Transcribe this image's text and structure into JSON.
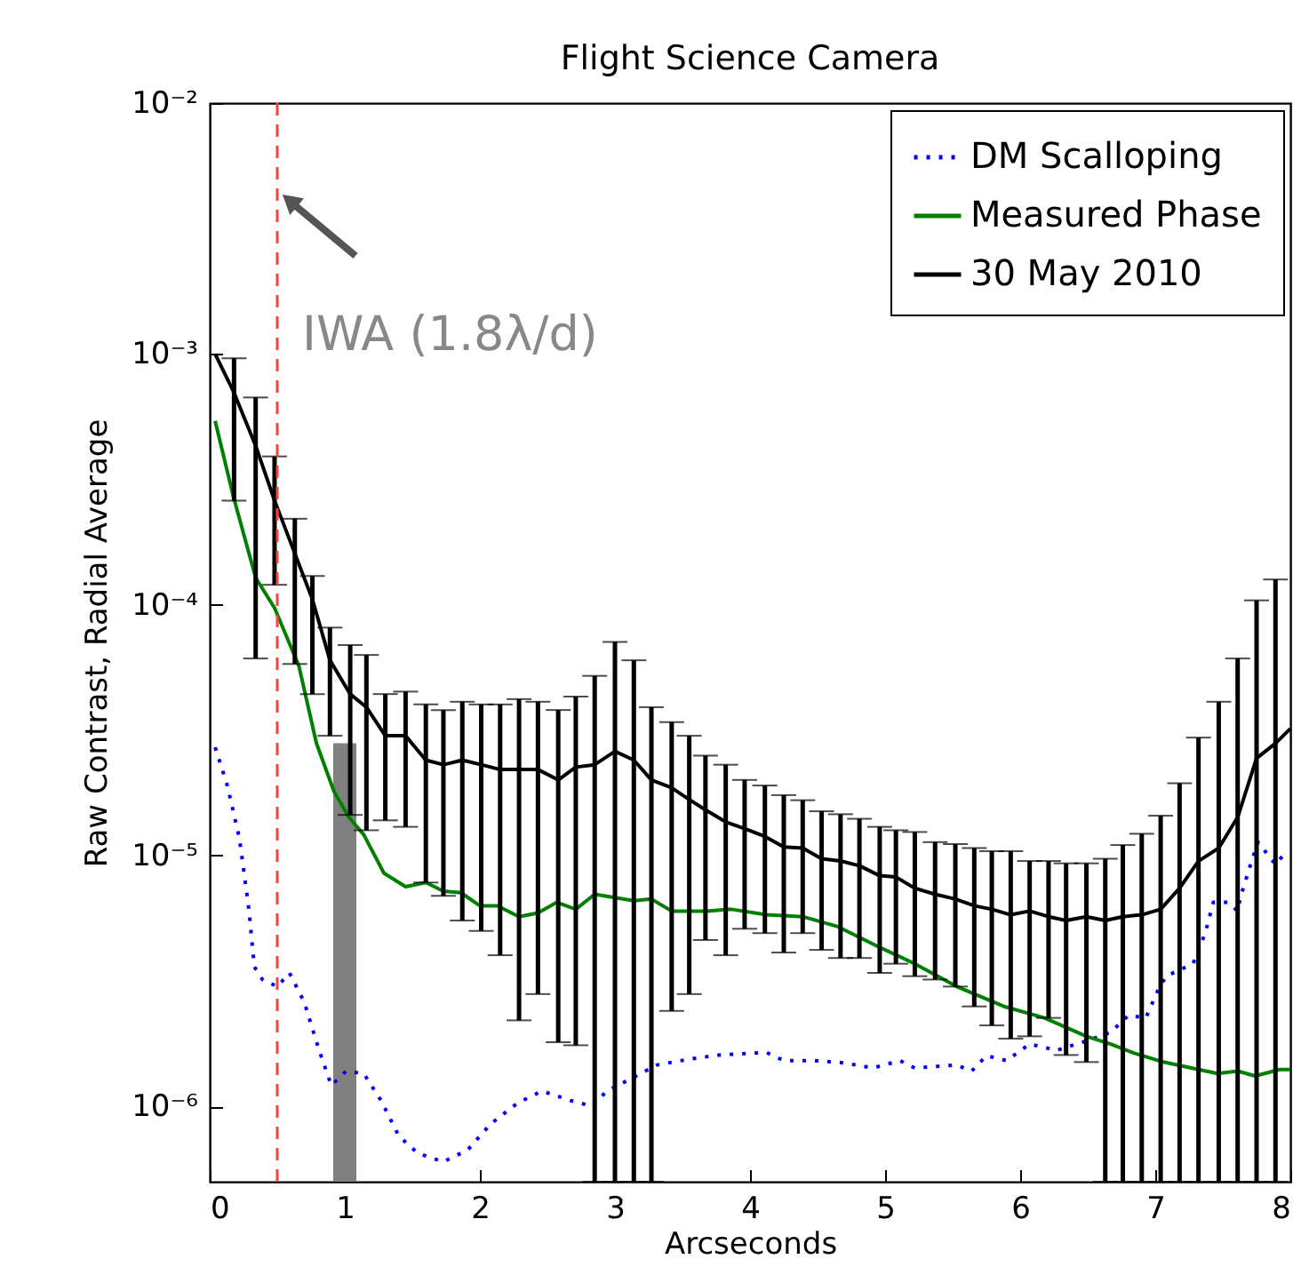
{
  "chart_data": {
    "type": "line",
    "title": "Flight Science Camera",
    "xlabel": "Arcseconds",
    "ylabel": "Raw Contrast, Radial Average",
    "xlim": [
      0,
      8
    ],
    "xticks": [
      0,
      1,
      2,
      3,
      4,
      5,
      6,
      7,
      8
    ],
    "ylim": [
      5e-07,
      0.01
    ],
    "yticks": [
      {
        "value": 1e-06,
        "label": "10⁻⁶"
      },
      {
        "value": 1e-05,
        "label": "10⁻⁵"
      },
      {
        "value": 0.0001,
        "label": "10⁻⁴"
      },
      {
        "value": 0.001,
        "label": "10⁻³"
      },
      {
        "value": 0.01,
        "label": "10⁻²"
      }
    ],
    "log": true,
    "legend": "top right",
    "ref_lines": [
      {
        "axis": "x",
        "value": 0.5,
        "color": "#ff4040",
        "line_style": "dashed"
      }
    ],
    "annotations": [
      {
        "text": "IWA (1.8λ/d)",
        "x": 0.5,
        "y": 0.0045
      }
    ],
    "series": [
      {
        "type": "bar",
        "color": "#808080",
        "x": [
          1
        ],
        "values": [
          2.8e-05
        ]
      },
      {
        "name": "DM Scalloping",
        "color": "#0000ff",
        "line_style": "dotted",
        "x": [
          0.04,
          0.13,
          0.22,
          0.29,
          0.33,
          0.39,
          0.5,
          0.59,
          0.7,
          0.81,
          0.9,
          1.01,
          1.14,
          1.27,
          1.4,
          1.54,
          1.73,
          1.91,
          2.08,
          2.28,
          2.46,
          2.68,
          2.83,
          2.94,
          3.11,
          3.31,
          3.55,
          3.77,
          4.12,
          4.25,
          4.47,
          4.69,
          4.91,
          5.11,
          5.22,
          5.53,
          5.64,
          5.75,
          5.9,
          6.07,
          6.27,
          6.49,
          6.67,
          6.8,
          6.93,
          7.02,
          7.08,
          7.28,
          7.37,
          7.43,
          7.54,
          7.61,
          7.63,
          7.7,
          7.76,
          7.89,
          7.98
        ],
        "values": [
          2.7e-05,
          1.9e-05,
          1.17e-05,
          6.1e-06,
          3.6e-06,
          3.2e-06,
          3e-06,
          3.4e-06,
          2.6e-06,
          1.67e-06,
          1.21e-06,
          1.38e-06,
          1.35e-06,
          1.05e-06,
          7.6e-07,
          6.5e-07,
          6e-07,
          6.7e-07,
          8.5e-07,
          1.03e-06,
          1.15e-06,
          1.05e-06,
          1e-06,
          1.15e-06,
          1.28e-06,
          1.46e-06,
          1.54e-06,
          1.6e-06,
          1.64e-06,
          1.52e-06,
          1.52e-06,
          1.49e-06,
          1.42e-06,
          1.52e-06,
          1.42e-06,
          1.46e-06,
          1.38e-06,
          1.59e-06,
          1.52e-06,
          1.77e-06,
          1.67e-06,
          1.82e-06,
          1.97e-06,
          2.3e-06,
          2.25e-06,
          2.9e-06,
          3.3e-06,
          3.7e-06,
          4.9e-06,
          6.5e-06,
          6.5e-06,
          6e-06,
          6.8e-06,
          9e-06,
          1.13e-05,
          9.2e-06,
          1.05e-05
        ]
      },
      {
        "name": "Measured Phase",
        "color": "#008000",
        "line_style": "solid",
        "x": [
          0.04,
          0.175,
          0.34,
          0.48,
          0.66,
          0.79,
          0.92,
          1.03,
          1.14,
          1.29,
          1.45,
          1.6,
          1.73,
          1.86,
          2.0,
          2.13,
          2.29,
          2.43,
          2.57,
          2.71,
          2.85,
          3.14,
          3.27,
          3.42,
          3.68,
          3.86,
          4.12,
          4.39,
          4.65,
          4.96,
          5.22,
          5.53,
          5.88,
          6.18,
          6.49,
          6.67,
          6.84,
          7.06,
          7.46,
          7.61,
          7.74,
          7.92,
          8.0
        ],
        "values": [
          0.00054,
          0.00027,
          0.000128,
          9.7e-05,
          5.7e-05,
          2.8e-05,
          1.8e-05,
          1.42e-05,
          1.21e-05,
          8.5e-06,
          7.5e-06,
          7.8e-06,
          7.2e-06,
          7.1e-06,
          6.3e-06,
          6.3e-06,
          5.7e-06,
          5.9e-06,
          6.5e-06,
          6.1e-06,
          7e-06,
          6.6e-06,
          6.7e-06,
          6e-06,
          6e-06,
          6.1e-06,
          5.8e-06,
          5.7e-06,
          5.2e-06,
          4.3e-06,
          3.7e-06,
          3e-06,
          2.5e-06,
          2.25e-06,
          1.9e-06,
          1.77e-06,
          1.63e-06,
          1.5e-06,
          1.35e-06,
          1.38e-06,
          1.32e-06,
          1.4e-06,
          1.4e-06
        ]
      },
      {
        "name": "30 May 2010",
        "color": "#000000",
        "line_style": "solid",
        "x": [
          0.04,
          0.18,
          0.34,
          0.48,
          0.63,
          0.76,
          0.89,
          1.04,
          1.16,
          1.3,
          1.45,
          1.6,
          1.73,
          1.87,
          2.01,
          2.15,
          2.29,
          2.43,
          2.58,
          2.71,
          2.85,
          3.0,
          3.14,
          3.27,
          3.42,
          3.55,
          3.67,
          3.82,
          3.96,
          4.11,
          4.25,
          4.39,
          4.53,
          4.67,
          4.81,
          4.96,
          5.08,
          5.22,
          5.37,
          5.52,
          5.66,
          5.79,
          5.93,
          6.07,
          6.21,
          6.34,
          6.49,
          6.63,
          6.76,
          6.9,
          7.04,
          7.18,
          7.32,
          7.47,
          7.61,
          7.75,
          7.89,
          8.0
        ],
        "values": [
          0.001,
          0.0007,
          0.00043,
          0.00026,
          0.00016,
          0.000105,
          6e-05,
          4.4e-05,
          3.9e-05,
          3e-05,
          3e-05,
          2.4e-05,
          2.3e-05,
          2.4e-05,
          2.3e-05,
          2.2e-05,
          2.2e-05,
          2.2e-05,
          2e-05,
          2.25e-05,
          2.3e-05,
          2.6e-05,
          2.4e-05,
          2e-05,
          1.86e-05,
          1.67e-05,
          1.52e-05,
          1.36e-05,
          1.28e-05,
          1.19e-05,
          1.08e-05,
          1.07e-05,
          9.7e-06,
          9.5e-06,
          9.1e-06,
          8.3e-06,
          8.2e-06,
          7.4e-06,
          7e-06,
          6.7e-06,
          6.3e-06,
          6.1e-06,
          5.8e-06,
          6e-06,
          5.7e-06,
          5.5e-06,
          5.7e-06,
          5.5e-06,
          5.7e-06,
          5.8e-06,
          6.1e-06,
          7.4e-06,
          9.5e-06,
          1.07e-05,
          1.42e-05,
          2.44e-05,
          2.8e-05,
          3.2e-05
        ],
        "errors": [
          null,
          [
            0.00026,
            0.00096
          ],
          [
            6.1e-05,
            0.00067
          ],
          [
            0.00012,
            0.00039
          ],
          [
            5.8e-05,
            0.00022
          ],
          [
            4.4e-05,
            0.00013
          ],
          [
            3e-05,
            8.1e-05
          ],
          [
            1.45e-05,
            6.9e-05
          ],
          [
            1.26e-05,
            6.3e-05
          ],
          [
            1.38e-05,
            4.4e-05
          ],
          [
            1.3e-05,
            4.5e-05
          ],
          [
            7.8e-06,
            4e-05
          ],
          [
            6.9e-06,
            3.8e-05
          ],
          [
            5.5e-06,
            4.1e-05
          ],
          [
            5e-06,
            4e-05
          ],
          [
            4e-06,
            4e-05
          ],
          [
            2.2e-06,
            4.2e-05
          ],
          [
            2.8e-06,
            4.1e-05
          ],
          [
            1.8e-06,
            3.8e-05
          ],
          [
            1.75e-06,
            4.3e-05
          ],
          [
            5e-07,
            5.2e-05
          ],
          [
            5e-07,
            7.1e-05
          ],
          [
            5e-07,
            6e-05
          ],
          [
            5e-07,
            3.9e-05
          ],
          [
            2.4e-06,
            3.4e-05
          ],
          [
            2.8e-06,
            3e-05
          ],
          [
            4.6e-06,
            2.5e-05
          ],
          [
            4e-06,
            2.3e-05
          ],
          [
            5.1e-06,
            2e-05
          ],
          [
            4.9e-06,
            1.9e-05
          ],
          [
            4.1e-06,
            1.74e-05
          ],
          [
            4.9e-06,
            1.66e-05
          ],
          [
            4.2e-06,
            1.5e-05
          ],
          [
            3.9e-06,
            1.46e-05
          ],
          [
            3.9e-06,
            1.4e-05
          ],
          [
            3.4e-06,
            1.3e-05
          ],
          [
            3.7e-06,
            1.26e-05
          ],
          [
            3.3e-06,
            1.24e-05
          ],
          [
            3.2e-06,
            1.13e-05
          ],
          [
            3e-06,
            1.11e-05
          ],
          [
            2.5e-06,
            1.07e-05
          ],
          [
            2.1e-06,
            1.04e-05
          ],
          [
            1.86e-06,
            1.04e-05
          ],
          [
            1.9e-06,
            9.5e-06
          ],
          [
            2.25e-06,
            9.5e-06
          ],
          [
            1.6e-06,
            9.3e-06
          ],
          [
            1.5e-06,
            9.3e-06
          ],
          [
            5e-07,
            9.7e-06
          ],
          [
            5e-07,
            1.1e-05
          ],
          [
            5e-07,
            1.22e-05
          ],
          [
            5e-07,
            1.44e-05
          ],
          [
            5e-07,
            1.94e-05
          ],
          [
            5e-07,
            2.95e-05
          ],
          [
            5e-07,
            4.1e-05
          ],
          [
            5e-07,
            6.1e-05
          ],
          [
            5e-07,
            0.000104
          ],
          [
            5e-07,
            0.000126
          ],
          null
        ]
      }
    ]
  }
}
